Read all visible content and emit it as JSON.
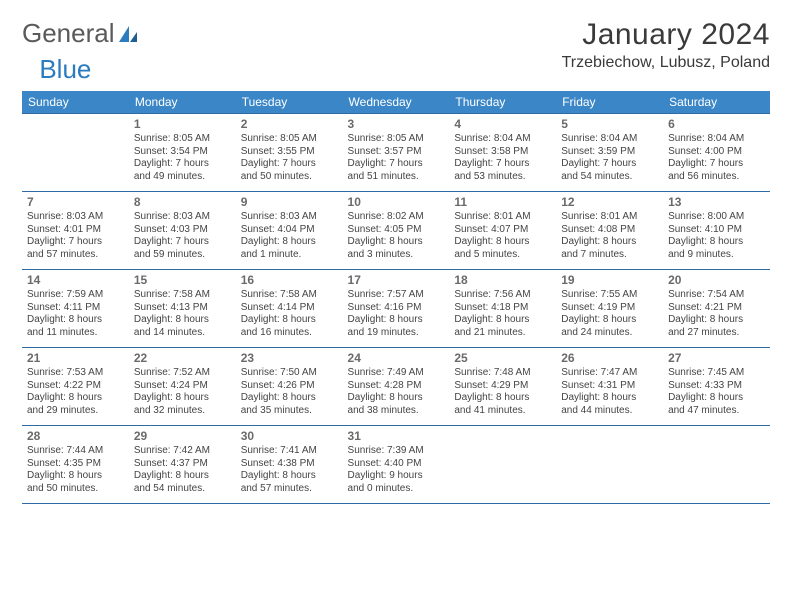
{
  "brand": {
    "part1": "General",
    "part2": "Blue"
  },
  "header": {
    "month_title": "January 2024",
    "location": "Trzebiechow, Lubusz, Poland"
  },
  "styling": {
    "header_bg": "#3b86c7",
    "header_text": "#ffffff",
    "row_border": "#2f6aa3",
    "logo_gray": "#5a5a5a",
    "logo_blue": "#2b7bbf",
    "page_bg": "#ffffff",
    "body_text": "#444444",
    "daynum_color": "#6a6a6a",
    "title_fontsize_pt": 22,
    "location_fontsize_pt": 12,
    "dayhead_fontsize_pt": 9,
    "cell_fontsize_pt": 7.5
  },
  "day_headers": [
    "Sunday",
    "Monday",
    "Tuesday",
    "Wednesday",
    "Thursday",
    "Friday",
    "Saturday"
  ],
  "weeks": [
    [
      null,
      {
        "n": "1",
        "sr": "Sunrise: 8:05 AM",
        "ss": "Sunset: 3:54 PM",
        "d1": "Daylight: 7 hours",
        "d2": "and 49 minutes."
      },
      {
        "n": "2",
        "sr": "Sunrise: 8:05 AM",
        "ss": "Sunset: 3:55 PM",
        "d1": "Daylight: 7 hours",
        "d2": "and 50 minutes."
      },
      {
        "n": "3",
        "sr": "Sunrise: 8:05 AM",
        "ss": "Sunset: 3:57 PM",
        "d1": "Daylight: 7 hours",
        "d2": "and 51 minutes."
      },
      {
        "n": "4",
        "sr": "Sunrise: 8:04 AM",
        "ss": "Sunset: 3:58 PM",
        "d1": "Daylight: 7 hours",
        "d2": "and 53 minutes."
      },
      {
        "n": "5",
        "sr": "Sunrise: 8:04 AM",
        "ss": "Sunset: 3:59 PM",
        "d1": "Daylight: 7 hours",
        "d2": "and 54 minutes."
      },
      {
        "n": "6",
        "sr": "Sunrise: 8:04 AM",
        "ss": "Sunset: 4:00 PM",
        "d1": "Daylight: 7 hours",
        "d2": "and 56 minutes."
      }
    ],
    [
      {
        "n": "7",
        "sr": "Sunrise: 8:03 AM",
        "ss": "Sunset: 4:01 PM",
        "d1": "Daylight: 7 hours",
        "d2": "and 57 minutes."
      },
      {
        "n": "8",
        "sr": "Sunrise: 8:03 AM",
        "ss": "Sunset: 4:03 PM",
        "d1": "Daylight: 7 hours",
        "d2": "and 59 minutes."
      },
      {
        "n": "9",
        "sr": "Sunrise: 8:03 AM",
        "ss": "Sunset: 4:04 PM",
        "d1": "Daylight: 8 hours",
        "d2": "and 1 minute."
      },
      {
        "n": "10",
        "sr": "Sunrise: 8:02 AM",
        "ss": "Sunset: 4:05 PM",
        "d1": "Daylight: 8 hours",
        "d2": "and 3 minutes."
      },
      {
        "n": "11",
        "sr": "Sunrise: 8:01 AM",
        "ss": "Sunset: 4:07 PM",
        "d1": "Daylight: 8 hours",
        "d2": "and 5 minutes."
      },
      {
        "n": "12",
        "sr": "Sunrise: 8:01 AM",
        "ss": "Sunset: 4:08 PM",
        "d1": "Daylight: 8 hours",
        "d2": "and 7 minutes."
      },
      {
        "n": "13",
        "sr": "Sunrise: 8:00 AM",
        "ss": "Sunset: 4:10 PM",
        "d1": "Daylight: 8 hours",
        "d2": "and 9 minutes."
      }
    ],
    [
      {
        "n": "14",
        "sr": "Sunrise: 7:59 AM",
        "ss": "Sunset: 4:11 PM",
        "d1": "Daylight: 8 hours",
        "d2": "and 11 minutes."
      },
      {
        "n": "15",
        "sr": "Sunrise: 7:58 AM",
        "ss": "Sunset: 4:13 PM",
        "d1": "Daylight: 8 hours",
        "d2": "and 14 minutes."
      },
      {
        "n": "16",
        "sr": "Sunrise: 7:58 AM",
        "ss": "Sunset: 4:14 PM",
        "d1": "Daylight: 8 hours",
        "d2": "and 16 minutes."
      },
      {
        "n": "17",
        "sr": "Sunrise: 7:57 AM",
        "ss": "Sunset: 4:16 PM",
        "d1": "Daylight: 8 hours",
        "d2": "and 19 minutes."
      },
      {
        "n": "18",
        "sr": "Sunrise: 7:56 AM",
        "ss": "Sunset: 4:18 PM",
        "d1": "Daylight: 8 hours",
        "d2": "and 21 minutes."
      },
      {
        "n": "19",
        "sr": "Sunrise: 7:55 AM",
        "ss": "Sunset: 4:19 PM",
        "d1": "Daylight: 8 hours",
        "d2": "and 24 minutes."
      },
      {
        "n": "20",
        "sr": "Sunrise: 7:54 AM",
        "ss": "Sunset: 4:21 PM",
        "d1": "Daylight: 8 hours",
        "d2": "and 27 minutes."
      }
    ],
    [
      {
        "n": "21",
        "sr": "Sunrise: 7:53 AM",
        "ss": "Sunset: 4:22 PM",
        "d1": "Daylight: 8 hours",
        "d2": "and 29 minutes."
      },
      {
        "n": "22",
        "sr": "Sunrise: 7:52 AM",
        "ss": "Sunset: 4:24 PM",
        "d1": "Daylight: 8 hours",
        "d2": "and 32 minutes."
      },
      {
        "n": "23",
        "sr": "Sunrise: 7:50 AM",
        "ss": "Sunset: 4:26 PM",
        "d1": "Daylight: 8 hours",
        "d2": "and 35 minutes."
      },
      {
        "n": "24",
        "sr": "Sunrise: 7:49 AM",
        "ss": "Sunset: 4:28 PM",
        "d1": "Daylight: 8 hours",
        "d2": "and 38 minutes."
      },
      {
        "n": "25",
        "sr": "Sunrise: 7:48 AM",
        "ss": "Sunset: 4:29 PM",
        "d1": "Daylight: 8 hours",
        "d2": "and 41 minutes."
      },
      {
        "n": "26",
        "sr": "Sunrise: 7:47 AM",
        "ss": "Sunset: 4:31 PM",
        "d1": "Daylight: 8 hours",
        "d2": "and 44 minutes."
      },
      {
        "n": "27",
        "sr": "Sunrise: 7:45 AM",
        "ss": "Sunset: 4:33 PM",
        "d1": "Daylight: 8 hours",
        "d2": "and 47 minutes."
      }
    ],
    [
      {
        "n": "28",
        "sr": "Sunrise: 7:44 AM",
        "ss": "Sunset: 4:35 PM",
        "d1": "Daylight: 8 hours",
        "d2": "and 50 minutes."
      },
      {
        "n": "29",
        "sr": "Sunrise: 7:42 AM",
        "ss": "Sunset: 4:37 PM",
        "d1": "Daylight: 8 hours",
        "d2": "and 54 minutes."
      },
      {
        "n": "30",
        "sr": "Sunrise: 7:41 AM",
        "ss": "Sunset: 4:38 PM",
        "d1": "Daylight: 8 hours",
        "d2": "and 57 minutes."
      },
      {
        "n": "31",
        "sr": "Sunrise: 7:39 AM",
        "ss": "Sunset: 4:40 PM",
        "d1": "Daylight: 9 hours",
        "d2": "and 0 minutes."
      },
      null,
      null,
      null
    ]
  ]
}
